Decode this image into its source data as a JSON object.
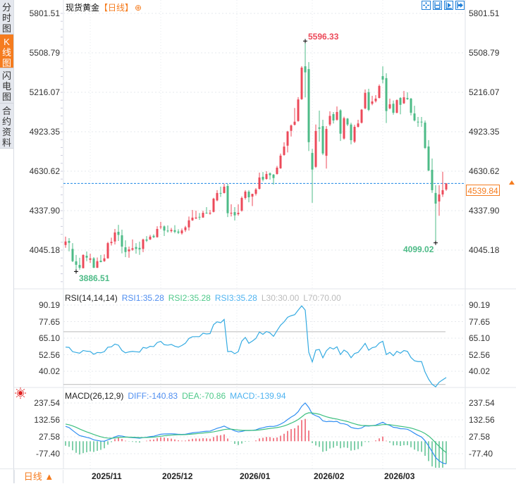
{
  "sidebar": {
    "tabs": [
      {
        "label": "分时图",
        "active": false
      },
      {
        "label": "K线图",
        "active": true
      },
      {
        "label": "闪电图",
        "active": false
      },
      {
        "label": "合约资料",
        "active": false
      }
    ]
  },
  "header": {
    "instrument": "现货黄金",
    "period": "【日线】",
    "add_icon": "circle-plus-icon",
    "tools": [
      "crosshair-icon",
      "fit-range-icon",
      "play-forward-icon",
      "go-to-end-icon"
    ]
  },
  "colors": {
    "up": "#ec4a5a",
    "down": "#4dbb87",
    "accent": "#f57c1f",
    "current_line": "#1e88e5",
    "rsi": "#35abe2",
    "diff": "#2f8ef2",
    "dea": "#3cbf7f"
  },
  "current_price": {
    "value": "4539.84",
    "icon": "triangle-up-icon"
  },
  "bottom": {
    "period_label": "日线",
    "period_icon": "triangle-up-icon"
  },
  "macd_icon": "sun-icon",
  "chart_data": [
    {
      "type": "candlestick",
      "title": "现货黄金【日线】",
      "y_ticks": [
        "5801.51",
        "5508.79",
        "5216.07",
        "4923.35",
        "4630.62",
        "4337.90",
        "4045.18"
      ],
      "ylim": [
        3830,
        5890
      ],
      "x_ticks": [
        "2025/11",
        "2025/12",
        "2026/01",
        "2026/02",
        "2026/03"
      ],
      "grid": true,
      "annotations": {
        "high": "5596.33",
        "low_left": "3886.51",
        "low_right": "4099.02"
      },
      "current_price": 4539.84,
      "ohlc": [
        [
          4083,
          4145,
          4062,
          4109
        ],
        [
          4113,
          4134,
          4036,
          4099
        ],
        [
          4054,
          4097,
          3956,
          3963
        ],
        [
          3962,
          4009,
          3886.51,
          3936
        ],
        [
          3935,
          3988,
          3900,
          3914
        ],
        [
          3911,
          4014,
          3909,
          4009
        ],
        [
          4003,
          4035,
          3963,
          3989
        ],
        [
          3973,
          4019,
          3950,
          3984
        ],
        [
          3984,
          3993,
          3912,
          3914
        ],
        [
          3914,
          3990,
          3912,
          3963
        ],
        [
          3967,
          4009,
          3955,
          3956
        ],
        [
          3963,
          4014,
          3958,
          3984
        ],
        [
          3984,
          4106,
          3982,
          4097
        ],
        [
          4097,
          4137,
          4079,
          4106
        ],
        [
          4109,
          4202,
          4087,
          4176
        ],
        [
          4181,
          4233,
          4113,
          4158
        ],
        [
          4155,
          4197,
          4021,
          4071
        ],
        [
          4066,
          4118,
          3993,
          4031
        ],
        [
          4036,
          4071,
          3988,
          4050
        ],
        [
          4048,
          4124,
          4040,
          4059
        ],
        [
          4068,
          4097,
          4019,
          4054
        ],
        [
          4062,
          4108,
          4010,
          4050
        ],
        [
          4054,
          4130,
          4030,
          4124
        ],
        [
          4124,
          4149,
          4105,
          4115
        ],
        [
          4124,
          4158,
          4120,
          4145
        ],
        [
          4151,
          4162,
          4135,
          4141
        ],
        [
          4141,
          4222,
          4138,
          4202
        ],
        [
          4215,
          4255,
          4200,
          4220
        ],
        [
          4221,
          4228,
          4150,
          4190
        ],
        [
          4190,
          4228,
          4175,
          4186
        ],
        [
          4186,
          4210,
          4175,
          4195
        ],
        [
          4193,
          4230,
          4170,
          4181
        ],
        [
          4183,
          4200,
          4165,
          4174
        ],
        [
          4170,
          4205,
          4160,
          4191
        ],
        [
          4193,
          4225,
          4180,
          4214
        ],
        [
          4214,
          4294,
          4190,
          4266
        ],
        [
          4266,
          4343,
          4262,
          4286
        ],
        [
          4280,
          4338,
          4275,
          4287
        ],
        [
          4292,
          4320,
          4270,
          4287
        ],
        [
          4287,
          4338,
          4284,
          4322
        ],
        [
          4322,
          4364,
          4315,
          4319
        ],
        [
          4316,
          4343,
          4308,
          4322
        ],
        [
          4329,
          4433,
          4325,
          4427
        ],
        [
          4414,
          4490,
          4408,
          4469
        ],
        [
          4469,
          4516,
          4440,
          4465
        ],
        [
          4469,
          4537,
          4465,
          4516
        ],
        [
          4521,
          4537,
          4290,
          4319
        ],
        [
          4316,
          4385,
          4295,
          4322
        ],
        [
          4327,
          4364,
          4265,
          4303
        ],
        [
          4312,
          4385,
          4300,
          4322
        ],
        [
          4338,
          4443,
          4330,
          4432
        ],
        [
          4432,
          4490,
          4420,
          4479
        ],
        [
          4479,
          4490,
          4400,
          4437
        ],
        [
          4442,
          4458,
          4372,
          4463
        ],
        [
          4463,
          4505,
          4450,
          4495
        ],
        [
          4500,
          4620,
          4495,
          4584
        ],
        [
          4589,
          4625,
          4555,
          4568
        ],
        [
          4573,
          4631,
          4568,
          4610
        ],
        [
          4615,
          4622,
          4568,
          4601
        ],
        [
          4605,
          4610,
          4531,
          4580
        ],
        [
          4610,
          4670,
          4605,
          4657
        ],
        [
          4652,
          4761,
          4648,
          4746
        ],
        [
          4751,
          4845,
          4745,
          4813
        ],
        [
          4820,
          4930,
          4770,
          4925
        ],
        [
          4930,
          4977,
          4888,
          4970
        ],
        [
          4975,
          5100,
          4970,
          4998
        ],
        [
          5003,
          5180,
          4998,
          5163
        ],
        [
          5165,
          5410,
          5160,
          5399
        ],
        [
          5409,
          5596.33,
          5178,
          5364
        ],
        [
          5388,
          5440,
          4780,
          4846
        ],
        [
          4766,
          4797,
          4396,
          4643
        ],
        [
          4663,
          4977,
          4655,
          4929
        ],
        [
          4955,
          5080,
          4850,
          4946
        ],
        [
          4965,
          5012,
          4750,
          4762
        ],
        [
          4745,
          4965,
          4650,
          4944
        ],
        [
          4977,
          5075,
          4965,
          5041
        ],
        [
          5054,
          5070,
          4985,
          5007
        ],
        [
          5012,
          5111,
          5005,
          5070
        ],
        [
          5082,
          5090,
          4855,
          4909
        ],
        [
          4873,
          5035,
          4865,
          5024
        ],
        [
          5021,
          5025,
          4965,
          4977
        ],
        [
          4977,
          4990,
          4830,
          4861
        ],
        [
          4850,
          4975,
          4840,
          4960
        ],
        [
          4960,
          5012,
          4955,
          4985
        ],
        [
          4990,
          5092,
          4985,
          5087
        ],
        [
          5097,
          5237,
          5090,
          5212
        ],
        [
          5217,
          5242,
          5076,
          5086
        ],
        [
          5131,
          5190,
          5120,
          5148
        ],
        [
          5150,
          5195,
          5140,
          5169
        ],
        [
          5174,
          5274,
          5170,
          5263
        ],
        [
          5336,
          5409,
          5282,
          5310
        ],
        [
          5321,
          5357,
          4988,
          5077
        ],
        [
          5097,
          5169,
          5090,
          5127
        ],
        [
          5131,
          5155,
          5050,
          5064
        ],
        [
          5064,
          5163,
          5060,
          5158
        ],
        [
          5174,
          5180,
          5053,
          5123
        ],
        [
          5134,
          5226,
          5130,
          5179
        ],
        [
          5174,
          5216,
          5160,
          5165
        ],
        [
          5169,
          5174,
          5045,
          5064
        ],
        [
          5059,
          5116,
          5000,
          5007
        ],
        [
          4998,
          5033,
          4960,
          4993
        ],
        [
          4998,
          5033,
          4960,
          4993
        ],
        [
          4991,
          5007,
          4795,
          4803
        ],
        [
          4814,
          4861,
          4630,
          4636
        ],
        [
          4641,
          4725,
          4470,
          4490
        ],
        [
          4469,
          4527,
          4099.02,
          4390
        ],
        [
          4406,
          4527,
          4300,
          4458
        ],
        [
          4458,
          4627,
          4440,
          4490
        ],
        [
          4495,
          4542,
          4485,
          4539.84
        ]
      ]
    },
    {
      "type": "line",
      "indicator": "RSI",
      "legend": {
        "name": "RSI(14,14,14)",
        "rsi1": "RSI1:35.28",
        "rsi2": "RSI2:35.28",
        "rsi3": "RSI3:35.28",
        "l30": "L30:30.00",
        "l70": "L70:70.00"
      },
      "y_ticks": [
        "90.19",
        "77.65",
        "65.10",
        "52.56",
        "40.02"
      ],
      "ylim": [
        28,
        95
      ],
      "levels": [
        30,
        70
      ],
      "last": 35.28
    },
    {
      "type": "bar+line",
      "indicator": "MACD",
      "legend": {
        "name": "MACD(26,12,9)",
        "diff": "DIFF:-140.83",
        "dea": "DEA:-70.86",
        "macd": "MACD:-139.94"
      },
      "y_ticks": [
        "237.54",
        "132.56",
        "27.58",
        "-77.40"
      ],
      "ylim": [
        -170,
        270
      ],
      "last": {
        "diff": -140.83,
        "dea": -70.86,
        "macd": -139.94
      }
    }
  ]
}
